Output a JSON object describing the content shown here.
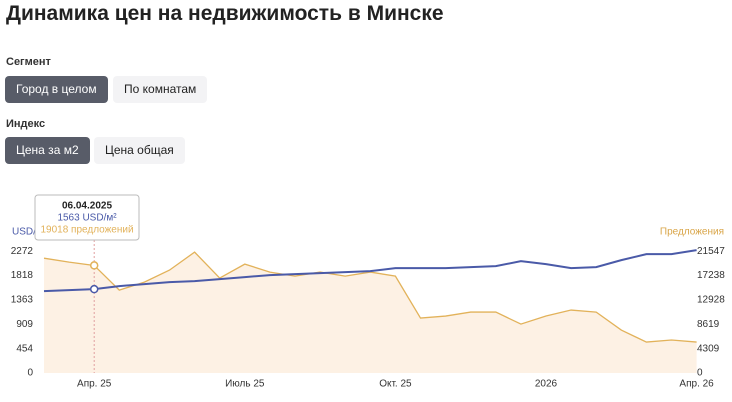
{
  "header": {
    "title": "Динамика цен на недвижимость в Минске"
  },
  "filters": [
    {
      "label": "Сегмент",
      "options": [
        "Город в целом",
        "По комнатам"
      ],
      "active": 0
    },
    {
      "label": "Индекс",
      "options": [
        "Цена за м2",
        "Цена общая"
      ],
      "active": 0
    }
  ],
  "chart_data": {
    "type": "line",
    "y_label": "USD/м²",
    "y2_label": "Предложения",
    "categories": [
      null,
      null,
      "Апр. 25",
      null,
      null,
      null,
      null,
      null,
      "Июль 25",
      null,
      null,
      null,
      null,
      null,
      "Окт. 25",
      null,
      null,
      null,
      null,
      null,
      "2026",
      null,
      null,
      null,
      null,
      null,
      "Апр. 26"
    ],
    "series": [
      {
        "name": "USD/м²",
        "color": "#4a5aa8",
        "values": [
          1527,
          1545,
          1563,
          1620,
          1657,
          1694,
          1713,
          1750,
          1788,
          1825,
          1843,
          1862,
          1880,
          1899,
          1955,
          1955,
          1955,
          1974,
          1992,
          2085,
          2030,
          1955,
          1974,
          2104,
          2216,
          2216,
          2290
        ]
      },
      {
        "name": "Предложения",
        "color": "#e2b25a",
        "axis": "y2",
        "fill": "#fdf1e4",
        "values": [
          20300,
          19600,
          19018,
          14660,
          16070,
          18190,
          21370,
          16780,
          19250,
          17840,
          17130,
          17840,
          17130,
          17840,
          17130,
          9710,
          10070,
          10770,
          10770,
          8650,
          10070,
          11130,
          10770,
          7590,
          5470,
          5830,
          5470
        ]
      }
    ],
    "ylim": [
      0,
      2330
    ],
    "yticks": [
      0,
      454,
      909,
      1363,
      1818,
      2272
    ],
    "y2lim": [
      0,
      22100
    ],
    "y2ticks": [
      0,
      4309,
      8619,
      12928,
      17238,
      21547
    ],
    "grid": false,
    "tooltip": {
      "index": 2,
      "date": "06.04.2025",
      "value_label": "1563 USD/м²",
      "offers_label": "19018 предложений"
    }
  }
}
